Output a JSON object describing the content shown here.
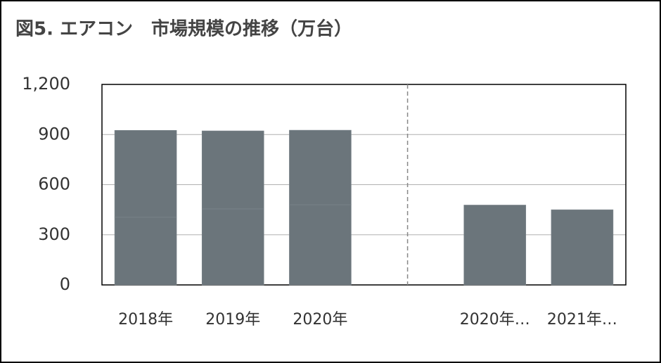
{
  "chart_data": {
    "type": "bar",
    "stacked": true,
    "title": "図5. エアコン　市場規模の推移（万台）",
    "categories": [
      "2018年",
      "2019年",
      "2020年",
      null,
      "2020年…",
      "2021年…"
    ],
    "series": [
      {
        "color": "#6b757b",
        "values": [
          405,
          455,
          480,
          null,
          478,
          450
        ]
      },
      {
        "color": "#6b757b",
        "values": [
          520,
          467,
          446,
          null,
          null,
          null
        ]
      }
    ],
    "ylim": [
      0,
      1200
    ],
    "yticks": [
      0,
      300,
      600,
      900,
      {
        "value": 1200,
        "label": "1,200"
      }
    ],
    "grid": true
  }
}
